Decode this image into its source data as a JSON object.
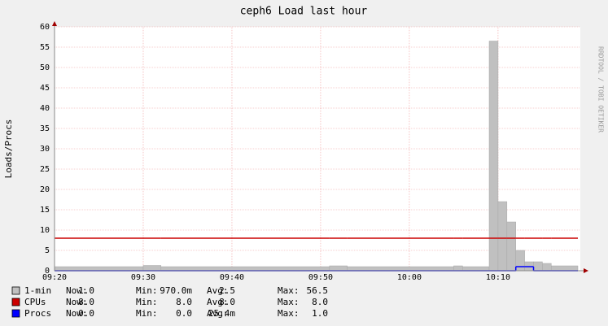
{
  "chart_data": {
    "type": "step-area",
    "title": "ceph6 Load last hour",
    "y_label": "Loads/Procs",
    "side_label": "RRDTOOL / TOBI OETIKER",
    "x": [
      "09:20",
      "09:30",
      "09:32",
      "09:51",
      "09:53",
      "10:05",
      "10:06",
      "10:09",
      "10:10",
      "10:11",
      "10:12",
      "10:13",
      "10:14",
      "10:15",
      "10:16",
      "10:19"
    ],
    "xlim": [
      "09:20",
      "10:19"
    ],
    "xticks": [
      "09:20",
      "09:30",
      "09:40",
      "09:50",
      "10:00",
      "10:10"
    ],
    "ylim": [
      0,
      60
    ],
    "yticks": [
      0,
      5,
      10,
      15,
      20,
      25,
      30,
      35,
      40,
      45,
      50,
      55,
      60
    ],
    "grid": true,
    "stat_labels": [
      "Now:",
      "Min:",
      "Avg:",
      "Max:"
    ],
    "series": [
      {
        "name": "1-min",
        "color": "#c0c0c0",
        "style": "area",
        "values": [
          1.0,
          1.3,
          1.0,
          1.2,
          1.0,
          1.2,
          1.0,
          56.5,
          17,
          12,
          5,
          2.2,
          2.2,
          1.8,
          1.2,
          1.0
        ],
        "stats": [
          "1.0",
          "970.0m",
          "2.5",
          "56.5"
        ]
      },
      {
        "name": "CPUs",
        "color": "#cc0000",
        "style": "line",
        "values": [
          8,
          8,
          8,
          8,
          8,
          8,
          8,
          8,
          8,
          8,
          8,
          8,
          8,
          8,
          8,
          8
        ],
        "stats": [
          "8.0",
          "8.0",
          "8.0",
          "8.0"
        ]
      },
      {
        "name": "Procs",
        "color": "#0000ff",
        "style": "line",
        "values": [
          0,
          0,
          0,
          0,
          0,
          0,
          0,
          0,
          0,
          0,
          1.0,
          1.0,
          0,
          0,
          0,
          0
        ],
        "stats": [
          "0.0",
          "0.0",
          "25.4m",
          "1.0"
        ]
      }
    ]
  }
}
